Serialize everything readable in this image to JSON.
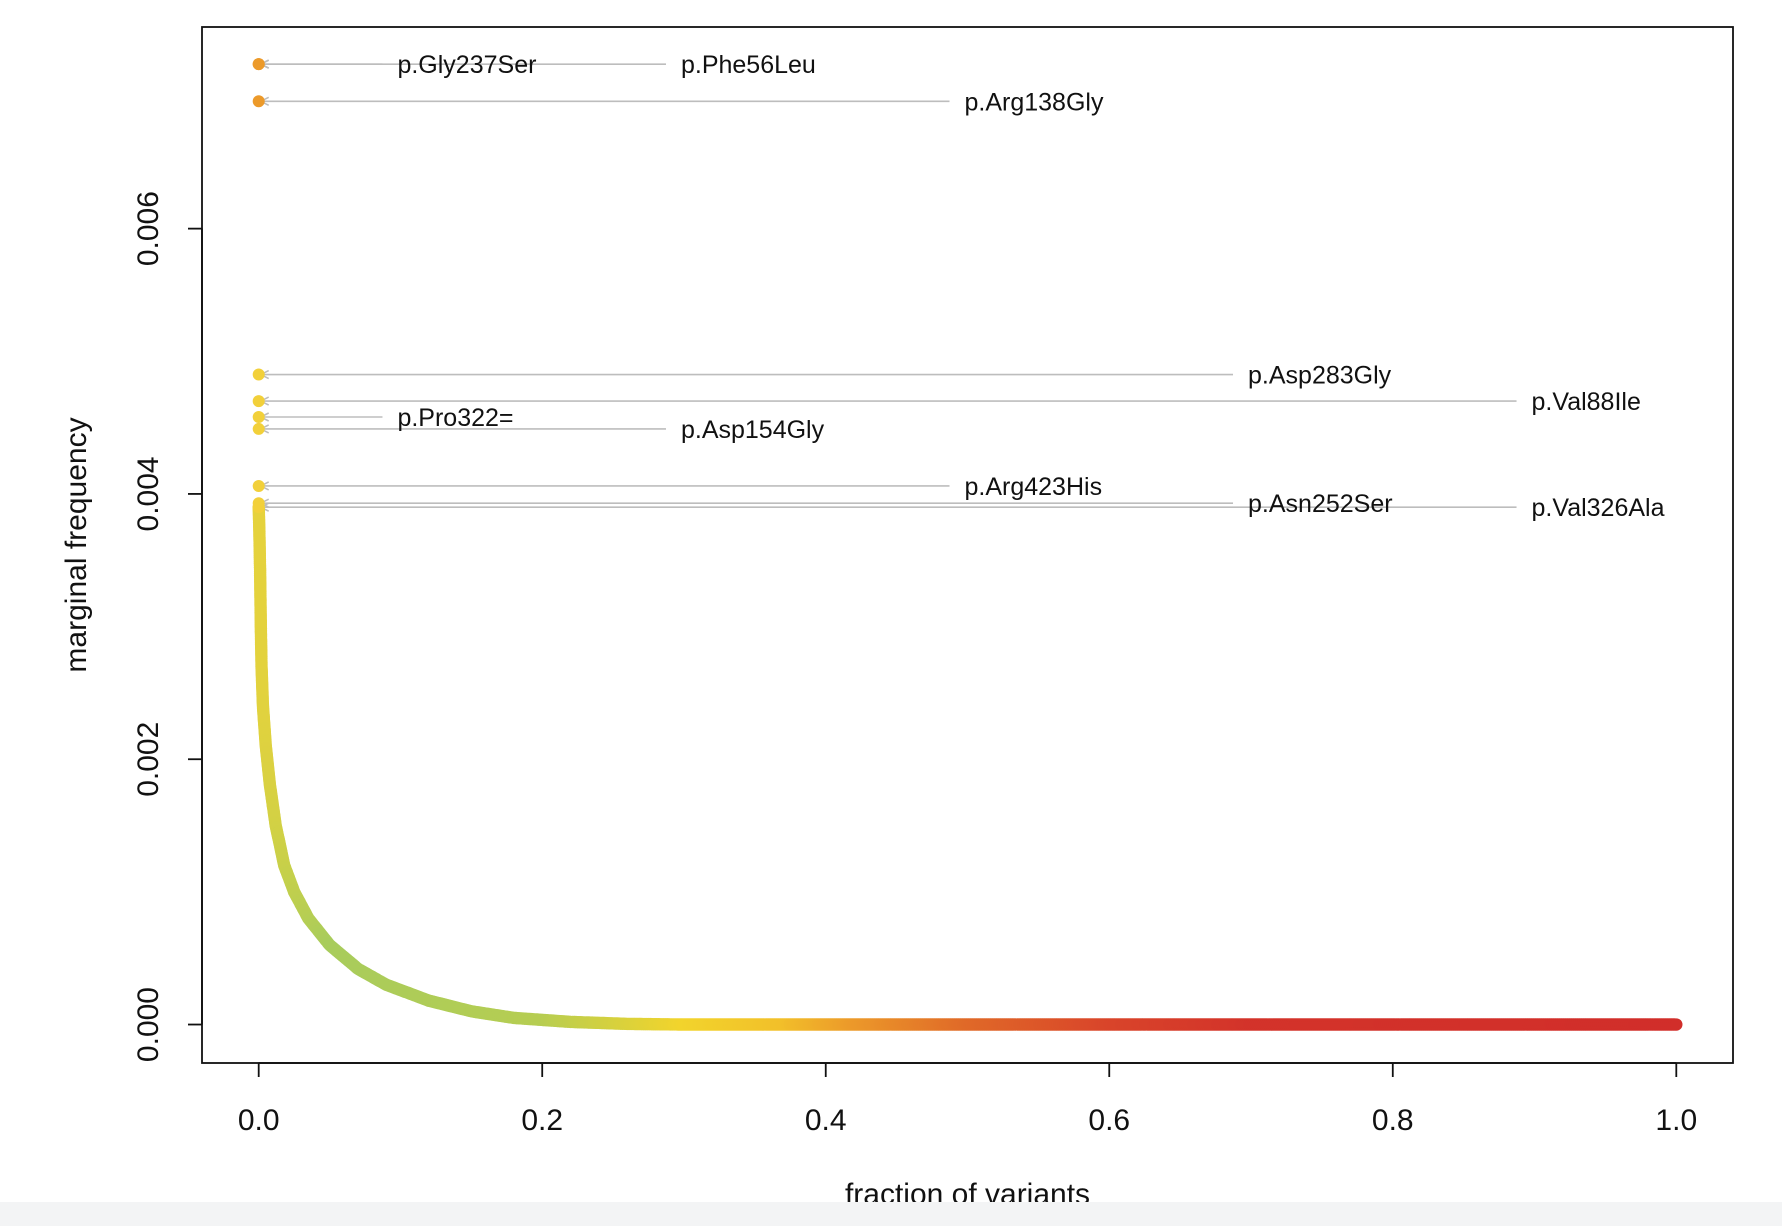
{
  "chart_data": {
    "type": "scatter",
    "title": "",
    "xlabel": "fraction of variants",
    "ylabel": "marginal frequency",
    "xlim": [
      -0.04,
      1.04
    ],
    "ylim": [
      -0.00029,
      0.00752
    ],
    "x_ticks": [
      0.0,
      0.2,
      0.4,
      0.6,
      0.8,
      1.0
    ],
    "x_tick_labels": [
      "0.0",
      "0.2",
      "0.4",
      "0.6",
      "0.8",
      "1.0"
    ],
    "y_ticks": [
      0.0,
      0.002,
      0.004,
      0.006
    ],
    "y_tick_labels": [
      "0.000",
      "0.002",
      "0.004",
      "0.006"
    ],
    "grid": false,
    "legend": "none",
    "curve": {
      "description_of_shape": "ranked marginal frequencies, decaying from about 0.0039 near x=0 to 0 by about x=0.3, continuing at 0 to x=1.0",
      "points": [
        [
          0.0,
          0.0039
        ],
        [
          0.0005,
          0.0037
        ],
        [
          0.001,
          0.0034
        ],
        [
          0.0015,
          0.003
        ],
        [
          0.002,
          0.0027
        ],
        [
          0.003,
          0.0024
        ],
        [
          0.005,
          0.0021
        ],
        [
          0.008,
          0.0018
        ],
        [
          0.012,
          0.0015
        ],
        [
          0.018,
          0.0012
        ],
        [
          0.025,
          0.001
        ],
        [
          0.035,
          0.0008
        ],
        [
          0.05,
          0.0006
        ],
        [
          0.07,
          0.00042
        ],
        [
          0.09,
          0.0003
        ],
        [
          0.12,
          0.00018
        ],
        [
          0.15,
          0.0001
        ],
        [
          0.18,
          5e-05
        ],
        [
          0.22,
          2e-05
        ],
        [
          0.26,
          5e-06
        ],
        [
          0.3,
          0.0
        ],
        [
          1.0,
          0.0
        ]
      ],
      "color_stops": [
        {
          "x": 0.0,
          "color": "#e6d23c"
        },
        {
          "x": 0.02,
          "color": "#c6d04a"
        },
        {
          "x": 0.05,
          "color": "#a8cc5c"
        },
        {
          "x": 0.2,
          "color": "#b6cd52"
        },
        {
          "x": 0.3,
          "color": "#f2d42c"
        },
        {
          "x": 0.37,
          "color": "#f2c02a"
        },
        {
          "x": 0.42,
          "color": "#ec9a2a"
        },
        {
          "x": 0.5,
          "color": "#e06a28"
        },
        {
          "x": 0.6,
          "color": "#d9452a"
        },
        {
          "x": 0.7,
          "color": "#d3332a"
        },
        {
          "x": 1.0,
          "color": "#d12e2a"
        }
      ]
    },
    "highlighted_points": [
      {
        "label": "p.Gly237Ser",
        "x": 0.0,
        "y": 0.00724,
        "label_x": 0.1,
        "color": "#ec9a2a"
      },
      {
        "label": "p.Phe56Leu",
        "x": 0.0,
        "y": 0.00724,
        "label_x": 0.3,
        "color": "#ec9a2a"
      },
      {
        "label": "p.Arg138Gly",
        "x": 0.0,
        "y": 0.00696,
        "label_x": 0.5,
        "color": "#ec9a2a"
      },
      {
        "label": "p.Asp283Gly",
        "x": 0.0,
        "y": 0.0049,
        "label_x": 0.7,
        "color": "#f2d03a"
      },
      {
        "label": "p.Val88Ile",
        "x": 0.0,
        "y": 0.0047,
        "label_x": 0.9,
        "color": "#f2d03a"
      },
      {
        "label": "p.Pro322=",
        "x": 0.0,
        "y": 0.00458,
        "label_x": 0.1,
        "color": "#f2d03a"
      },
      {
        "label": "p.Asp154Gly",
        "x": 0.0,
        "y": 0.00449,
        "label_x": 0.3,
        "color": "#f2d03a"
      },
      {
        "label": "p.Arg423His",
        "x": 0.0,
        "y": 0.00406,
        "label_x": 0.5,
        "color": "#f2d03a"
      },
      {
        "label": "p.Asn252Ser",
        "x": 0.0,
        "y": 0.00393,
        "label_x": 0.7,
        "color": "#f2d03a"
      },
      {
        "label": "p.Val326Ala",
        "x": 0.0,
        "y": 0.0039,
        "label_x": 0.9,
        "color": "#f2d03a"
      }
    ],
    "colors": {
      "axis": "#111111",
      "leader_line": "#bdbdbd"
    }
  }
}
